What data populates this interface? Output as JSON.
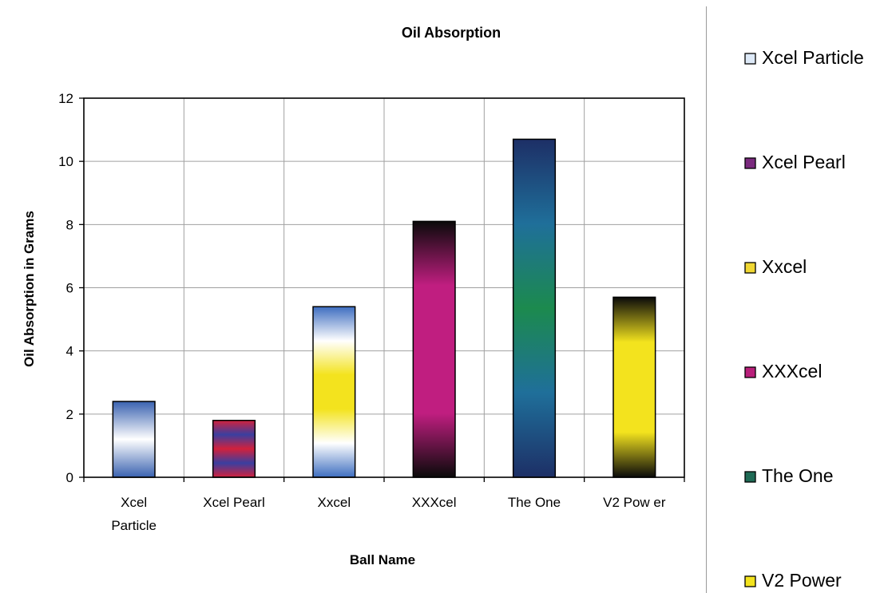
{
  "chart_data": {
    "type": "bar",
    "title": "Oil Absorption",
    "xlabel": "Ball Name",
    "ylabel": "Oil Absorption in Grams",
    "categories": [
      "Xcel Particle",
      "Xcel Pearl",
      "Xxcel",
      "XXXcel",
      "The One",
      "V2 Power"
    ],
    "category_tick_labels": [
      [
        "Xcel",
        "Particle"
      ],
      [
        "Xcel Pearl"
      ],
      [
        "Xxcel"
      ],
      [
        "XXXcel"
      ],
      [
        "The One"
      ],
      [
        "V2 Pow er"
      ]
    ],
    "values": [
      2.4,
      1.8,
      5.4,
      8.1,
      10.7,
      5.7
    ],
    "ylim": [
      0,
      12
    ],
    "yticks": [
      0,
      2,
      4,
      6,
      8,
      10,
      12
    ],
    "grid": true,
    "legend_position": "right",
    "legend": [
      "Xcel Particle",
      "Xcel Pearl",
      "Xxcel",
      "XXXcel",
      "The One",
      "V2 Power"
    ],
    "gradients": [
      [
        "#3a62b0",
        "#ffffff",
        "#3a62b0"
      ],
      [
        "#d2213c",
        "#3a3fa0",
        "#d2213c",
        "#3a3fa0",
        "#d2213c"
      ],
      [
        "#3e6ec0",
        "#ffffff",
        "#f3e31e",
        "#f3e31e",
        "#ffffff",
        "#3e6ec0"
      ],
      [
        "#0a0a0a",
        "#c01e80",
        "#c01e80",
        "#c01e80",
        "#0a0a0a"
      ],
      [
        "#1d2f66",
        "#1f6f9a",
        "#1c8a4e",
        "#1f6f9a",
        "#1d2f66"
      ],
      [
        "#0a0a0a",
        "#f3e31e",
        "#f3e31e",
        "#f3e31e",
        "#0a0a0a"
      ]
    ],
    "legend_swatch_colors": [
      "#dde9f7",
      "#7a2a7e",
      "#f0d733",
      "#b81f7a",
      "#1f6a55",
      "#f3e31e"
    ]
  }
}
